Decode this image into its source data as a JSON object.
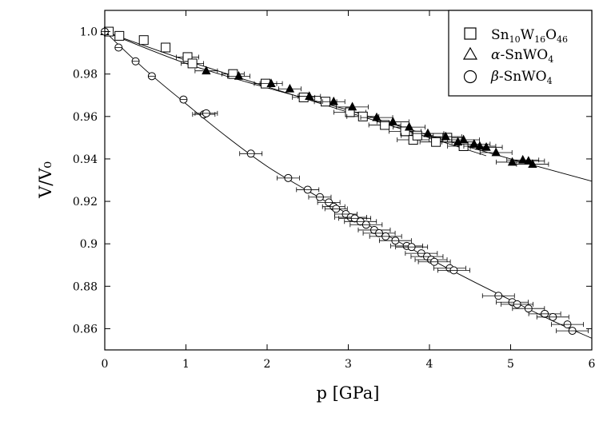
{
  "chart_data": {
    "type": "scatter",
    "title": "",
    "xlabel": "p [GPa]",
    "ylabel": "V/V₀",
    "xlim": [
      0,
      6
    ],
    "ylim": [
      0.85,
      1.01
    ],
    "x_ticks": [
      0,
      1,
      2,
      3,
      4,
      5,
      6
    ],
    "x_tick_labels": [
      "0",
      "1",
      "2",
      "3",
      "4",
      "5",
      "6"
    ],
    "y_ticks": [
      0.86,
      0.88,
      0.9,
      0.92,
      0.94,
      0.96,
      0.98,
      1.0
    ],
    "y_tick_labels": [
      "0.86",
      "0.88",
      "0.9",
      "0.92",
      "0.94",
      "0.96",
      "0.98",
      "1.0"
    ],
    "grid": false,
    "legend_position": "top-right",
    "series": [
      {
        "legend_label": {
          "base": "Sn",
          "sub1": "10",
          "mid": "W",
          "sub2": "16",
          "tail": "O",
          "sub3": "46"
        },
        "marker": "square",
        "x": [
          0.05,
          0.18,
          0.48,
          0.75,
          1.02,
          1.08,
          1.58,
          1.98,
          2.45,
          2.72,
          3.02,
          3.18,
          3.45,
          3.7,
          3.8,
          3.85,
          4.08,
          4.22,
          4.42
        ],
        "y": [
          1.0,
          0.998,
          0.996,
          0.9925,
          0.988,
          0.985,
          0.98,
          0.9755,
          0.969,
          0.967,
          0.962,
          0.96,
          0.956,
          0.953,
          0.949,
          0.951,
          0.948,
          0.95,
          0.946
        ],
        "fit": {
          "x": [
            0,
            1,
            2,
            3,
            4,
            4.7
          ],
          "y": [
            1.0,
            0.9865,
            0.974,
            0.962,
            0.95,
            0.9415
          ]
        }
      },
      {
        "legend_label": {
          "greek": "α",
          "rest": "-SnWO",
          "sub": "4"
        },
        "marker": "filled-triangle",
        "x": [
          0.0,
          1.25,
          1.65,
          2.05,
          2.28,
          2.52,
          2.82,
          3.05,
          3.35,
          3.55,
          3.75,
          3.98,
          4.2,
          4.35,
          4.42,
          4.55,
          4.62,
          4.7,
          4.82,
          5.02,
          5.15,
          5.22,
          5.27
        ],
        "y": [
          1.0,
          0.9815,
          0.979,
          0.9755,
          0.973,
          0.9695,
          0.967,
          0.9645,
          0.9595,
          0.9575,
          0.955,
          0.952,
          0.9505,
          0.948,
          0.949,
          0.947,
          0.946,
          0.9455,
          0.943,
          0.9385,
          0.9395,
          0.939,
          0.9375
        ],
        "fit": {
          "x": [
            0,
            1,
            2,
            3,
            4,
            5,
            6
          ],
          "y": [
            1.0,
            0.985,
            0.9735,
            0.963,
            0.951,
            0.94,
            0.9295
          ]
        }
      },
      {
        "legend_label": {
          "greek": "β",
          "rest": "-SnWO",
          "sub": "4"
        },
        "marker": "crossed-circle",
        "x": [
          0.0,
          0.17,
          0.38,
          0.58,
          0.97,
          1.22,
          1.25,
          1.8,
          2.26,
          2.5,
          2.65,
          2.76,
          2.82,
          2.85,
          2.97,
          3.03,
          3.08,
          3.15,
          3.22,
          3.32,
          3.38,
          3.46,
          3.58,
          3.72,
          3.78,
          3.9,
          3.97,
          4.02,
          4.06,
          4.25,
          4.3,
          4.85,
          5.02,
          5.08,
          5.22,
          5.42,
          5.52,
          5.7,
          5.76
        ],
        "y": [
          1.0,
          0.9925,
          0.986,
          0.979,
          0.968,
          0.961,
          0.9615,
          0.9425,
          0.931,
          0.9255,
          0.922,
          0.9195,
          0.9175,
          0.9165,
          0.914,
          0.9125,
          0.912,
          0.9105,
          0.909,
          0.9065,
          0.905,
          0.9035,
          0.9015,
          0.899,
          0.8985,
          0.8955,
          0.894,
          0.8925,
          0.8915,
          0.8885,
          0.8875,
          0.8755,
          0.8725,
          0.8715,
          0.8695,
          0.867,
          0.8655,
          0.862,
          0.859
        ],
        "fit": {
          "x": [
            0,
            0.5,
            1,
            1.5,
            2,
            2.5,
            3,
            3.5,
            4,
            4.5,
            5,
            5.5,
            6
          ],
          "y": [
            1.0,
            0.982,
            0.966,
            0.9505,
            0.9365,
            0.925,
            0.914,
            0.9035,
            0.893,
            0.883,
            0.8735,
            0.864,
            0.8555
          ]
        }
      }
    ]
  }
}
